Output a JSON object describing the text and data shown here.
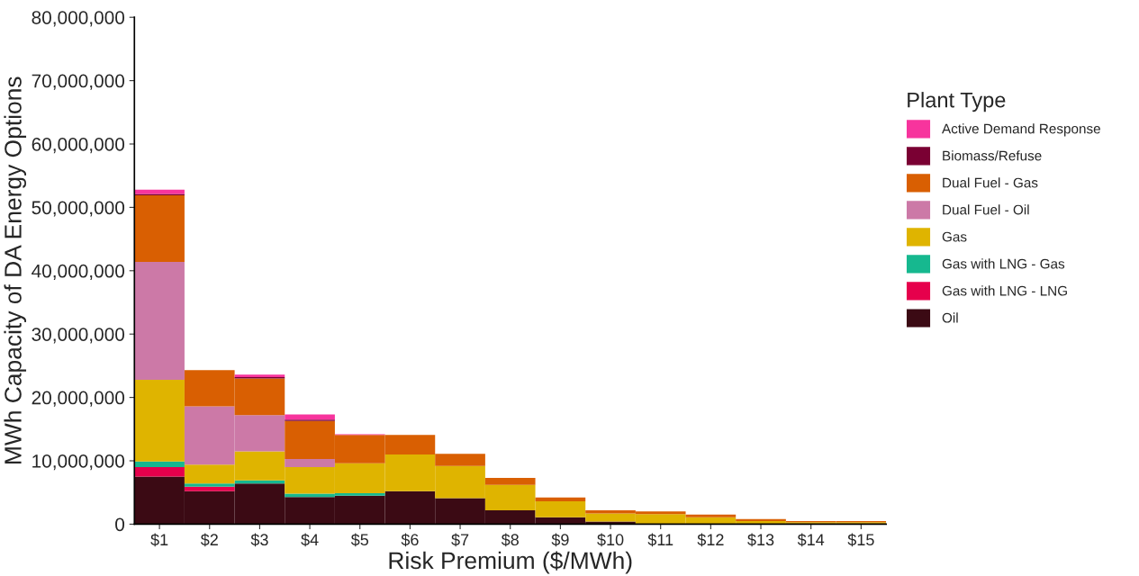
{
  "chart_data": {
    "type": "bar",
    "stacked": true,
    "xlabel": "Risk Premium ($/MWh)",
    "ylabel": "MWh Capacity of DA Energy Options",
    "legend_title": "Plant Type",
    "legend": "right",
    "grid": false,
    "categories": [
      "$1",
      "$2",
      "$3",
      "$4",
      "$5",
      "$6",
      "$7",
      "$8",
      "$9",
      "$10",
      "$11",
      "$12",
      "$13",
      "$14",
      "$15"
    ],
    "ylim": [
      0,
      80000000
    ],
    "yticks": [
      {
        "value": 0,
        "label": "0"
      },
      {
        "value": 10000000,
        "label": "10,000,000"
      },
      {
        "value": 20000000,
        "label": "20,000,000"
      },
      {
        "value": 30000000,
        "label": "30,000,000"
      },
      {
        "value": 40000000,
        "label": "40,000,000"
      },
      {
        "value": 50000000,
        "label": "50,000,000"
      },
      {
        "value": 60000000,
        "label": "60,000,000"
      },
      {
        "value": 70000000,
        "label": "70,000,000"
      },
      {
        "value": 80000000,
        "label": "80,000,000"
      }
    ],
    "series": [
      {
        "name": "Oil",
        "color": "#3b0a14",
        "values": [
          7500000,
          5200000,
          6400000,
          4300000,
          4500000,
          5200000,
          4100000,
          2200000,
          1100000,
          400000,
          null,
          null,
          0,
          0,
          0
        ]
      },
      {
        "name": "Gas with LNG - LNG",
        "color": "#e6004c",
        "values": [
          1500000,
          700000,
          0,
          0,
          0,
          0,
          0,
          0,
          0,
          0,
          0,
          0,
          0,
          0,
          0
        ]
      },
      {
        "name": "Gas with LNG - Gas",
        "color": "#16b88f",
        "values": [
          900000,
          500000,
          500000,
          500000,
          400000,
          0,
          0,
          0,
          0,
          0,
          0,
          0,
          0,
          0,
          0
        ]
      },
      {
        "name": "Gas",
        "color": "#dfb400",
        "values": [
          12900000,
          3000000,
          4600000,
          4200000,
          4700000,
          5800000,
          5100000,
          4000000,
          2500000,
          1300000,
          1600000,
          1100000,
          500000,
          300000,
          300000
        ]
      },
      {
        "name": "Dual Fuel - Oil",
        "color": "#cc79a7",
        "values": [
          18600000,
          9200000,
          5700000,
          1300000,
          0,
          0,
          0,
          0,
          0,
          0,
          0,
          0,
          0,
          0,
          0
        ]
      },
      {
        "name": "Dual Fuel - Gas",
        "color": "#d95f02",
        "values": [
          10500000,
          5700000,
          5800000,
          6000000,
          4500000,
          3100000,
          1900000,
          1100000,
          600000,
          500000,
          400000,
          400000,
          300000,
          200000,
          200000
        ]
      },
      {
        "name": "Biomass/Refuse",
        "color": "#7a0033",
        "values": [
          200000,
          0,
          200000,
          200000,
          0,
          0,
          0,
          0,
          0,
          0,
          0,
          0,
          0,
          0,
          0
        ]
      },
      {
        "name": "Active Demand Response",
        "color": "#f7349d",
        "values": [
          700000,
          0,
          400000,
          800000,
          100000,
          0,
          0,
          0,
          0,
          0,
          0,
          0,
          0,
          0,
          0
        ]
      }
    ]
  }
}
